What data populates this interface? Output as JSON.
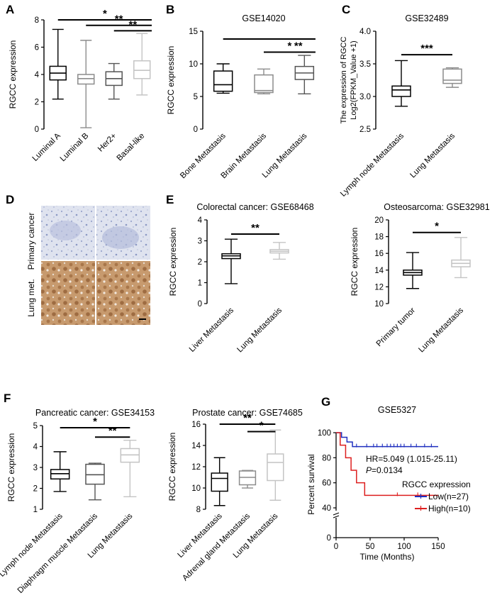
{
  "figure": {
    "panel_letters": [
      "A",
      "B",
      "C",
      "D",
      "E",
      "F",
      "G"
    ],
    "ihc": {
      "row_labels": [
        "Primary cancer",
        "Lung met."
      ]
    }
  },
  "chart_data": [
    {
      "id": "A",
      "type": "box",
      "title": "",
      "xlabel": "",
      "ylabel": "RGCC expression",
      "ylim": [
        0,
        8
      ],
      "yticks": [
        0,
        2,
        4,
        6,
        8
      ],
      "categories": [
        "Luminal A",
        "Luminal B",
        "Her2+",
        "Basal-like"
      ],
      "boxes": [
        {
          "min": 2.2,
          "q1": 3.6,
          "median": 4.1,
          "q3": 4.6,
          "max": 7.3,
          "color": "#000000"
        },
        {
          "min": 0.1,
          "q1": 3.3,
          "median": 3.7,
          "q3": 4.0,
          "max": 6.5,
          "color": "#8c8c8c"
        },
        {
          "min": 2.2,
          "q1": 3.2,
          "median": 3.7,
          "q3": 4.2,
          "max": 4.8,
          "color": "#555555"
        },
        {
          "min": 2.5,
          "q1": 3.7,
          "median": 4.3,
          "q3": 5.0,
          "max": 7.0,
          "color": "#c4c4c4"
        }
      ],
      "significance": [
        {
          "from": 0,
          "to": 3,
          "label": "*"
        },
        {
          "from": 1,
          "to": 3,
          "label": "**"
        },
        {
          "from": 2,
          "to": 3,
          "label": "**"
        }
      ]
    },
    {
      "id": "B",
      "type": "box",
      "title": "GSE14020",
      "xlabel": "",
      "ylabel": "RGCC expression",
      "ylim": [
        0,
        15
      ],
      "yticks": [
        0,
        5,
        10,
        15
      ],
      "categories": [
        "Bone Metastasis",
        "Brain Metastasis",
        "Lung Metastasis"
      ],
      "boxes": [
        {
          "min": 5.5,
          "q1": 5.8,
          "median": 6.8,
          "q3": 8.9,
          "max": 10.0,
          "color": "#000000"
        },
        {
          "min": 5.4,
          "q1": 5.6,
          "median": 5.9,
          "q3": 8.3,
          "max": 9.2,
          "color": "#8c8c8c"
        },
        {
          "min": 5.4,
          "q1": 7.6,
          "median": 8.6,
          "q3": 9.6,
          "max": 11.3,
          "color": "#555555"
        }
      ],
      "significance": [
        {
          "from": 0,
          "to": 2,
          "label": ""
        },
        {
          "from": 1,
          "to": 2,
          "label": "*"
        },
        {
          "from": 2,
          "to": 2,
          "label": "**"
        }
      ]
    },
    {
      "id": "C",
      "type": "box",
      "title": "GSE32489",
      "xlabel": "",
      "ylabel": "The expression of RGCC",
      "ylabel2": "Log2(FPKM_Value +1)",
      "ylim": [
        2.5,
        4.0
      ],
      "yticks": [
        2.5,
        3.0,
        3.5,
        4.0
      ],
      "categories": [
        "Lymph node Metastasis",
        "Lung Metastasis"
      ],
      "boxes": [
        {
          "min": 2.85,
          "q1": 3.0,
          "median": 3.1,
          "q3": 3.16,
          "max": 3.55,
          "color": "#000000"
        },
        {
          "min": 3.14,
          "q1": 3.2,
          "median": 3.25,
          "q3": 3.42,
          "max": 3.44,
          "color": "#8c8c8c"
        }
      ],
      "significance": [
        {
          "from": 0,
          "to": 1,
          "label": "***"
        }
      ]
    },
    {
      "id": "E1",
      "type": "box",
      "title": "Colorectal cancer: GSE68468",
      "xlabel": "",
      "ylabel": "RGCC expression",
      "ylim": [
        0,
        4
      ],
      "yticks": [
        0,
        1,
        2,
        3,
        4
      ],
      "categories": [
        "Liver Metastasis",
        "Lung Metastasis"
      ],
      "boxes": [
        {
          "min": 0.95,
          "q1": 2.15,
          "median": 2.28,
          "q3": 2.38,
          "max": 3.08,
          "color": "#000000"
        },
        {
          "min": 2.12,
          "q1": 2.42,
          "median": 2.5,
          "q3": 2.58,
          "max": 2.92,
          "color": "#c4c4c4"
        }
      ],
      "significance": [
        {
          "from": 0,
          "to": 1,
          "label": "**"
        }
      ]
    },
    {
      "id": "E2",
      "type": "box",
      "title": "Osteosarcoma: GSE32981",
      "xlabel": "",
      "ylabel": "RGCC expression",
      "ylim": [
        10,
        20
      ],
      "yticks": [
        10,
        12,
        14,
        16,
        18,
        20
      ],
      "categories": [
        "Primary tumor",
        "Lung Metastasis"
      ],
      "boxes": [
        {
          "min": 11.8,
          "q1": 13.4,
          "median": 13.7,
          "q3": 14.0,
          "max": 16.1,
          "color": "#000000"
        },
        {
          "min": 13.1,
          "q1": 14.4,
          "median": 14.8,
          "q3": 15.2,
          "max": 17.9,
          "color": "#c4c4c4"
        }
      ],
      "significance": [
        {
          "from": 0,
          "to": 1,
          "label": "*"
        }
      ]
    },
    {
      "id": "F1",
      "type": "box",
      "title": "Pancreatic cancer: GSE34153",
      "xlabel": "",
      "ylabel": "RGCC expression",
      "ylim": [
        1,
        5
      ],
      "yticks": [
        1,
        2,
        3,
        4,
        5
      ],
      "categories": [
        "Lymph node Metastasis",
        "Diaphragm muscle Metastasis",
        "Lung Metastasis"
      ],
      "boxes": [
        {
          "min": 1.85,
          "q1": 2.45,
          "median": 2.7,
          "q3": 2.9,
          "max": 3.75,
          "color": "#000000"
        },
        {
          "min": 1.45,
          "q1": 2.2,
          "median": 2.65,
          "q3": 3.15,
          "max": 3.2,
          "color": "#555555"
        },
        {
          "min": 1.6,
          "q1": 3.25,
          "median": 3.6,
          "q3": 3.9,
          "max": 4.3,
          "color": "#c4c4c4"
        }
      ],
      "significance": [
        {
          "from": 0,
          "to": 2,
          "label": "*"
        },
        {
          "from": 1,
          "to": 2,
          "label": "**"
        }
      ]
    },
    {
      "id": "F2",
      "type": "box",
      "title": "Prostate cancer: GSE74685",
      "xlabel": "",
      "ylabel": "RGCC expression",
      "ylim": [
        8,
        16
      ],
      "yticks": [
        8,
        10,
        12,
        14,
        16
      ],
      "categories": [
        "Liver Metastasis",
        "Adrenal gland Metastasis",
        "Lung Metastasis"
      ],
      "boxes": [
        {
          "min": 8.35,
          "q1": 9.7,
          "median": 10.9,
          "q3": 11.4,
          "max": 12.85,
          "color": "#000000"
        },
        {
          "min": 10.0,
          "q1": 10.3,
          "median": 11.0,
          "q3": 11.6,
          "max": 11.65,
          "color": "#8c8c8c"
        },
        {
          "min": 8.85,
          "q1": 10.7,
          "median": 12.4,
          "q3": 13.2,
          "max": 15.45,
          "color": "#c4c4c4"
        }
      ],
      "significance": [
        {
          "from": 0,
          "to": 2,
          "label": "**"
        },
        {
          "from": 1,
          "to": 2,
          "label": "*"
        }
      ]
    },
    {
      "id": "G",
      "type": "line",
      "subtype": "kaplan-meier",
      "title": "GSE5327",
      "xlabel": "Time (Months)",
      "ylabel": "Percent survival",
      "xlim": [
        0,
        150
      ],
      "xticks": [
        0,
        50,
        100,
        150
      ],
      "ylim": [
        0,
        100
      ],
      "yticks": [
        0,
        40,
        60,
        80,
        100
      ],
      "y_axis_break": true,
      "hr_text": "HR=5.049 (1.015-25.11)",
      "p_label": "P",
      "p_value": "=0.0134",
      "legend_title": "RGCC expression",
      "legend_placement": "bottom-right",
      "series": [
        {
          "name": "Low(n=27)",
          "color": "#1f2fbf",
          "steps": [
            [
              0,
              100
            ],
            [
              8,
              96.3
            ],
            [
              16,
              92.6
            ],
            [
              24,
              88.9
            ],
            [
              150,
              88.9
            ]
          ],
          "censors": [
            30,
            45,
            55,
            60,
            68,
            75,
            80,
            85,
            90,
            95,
            100,
            110,
            118,
            130,
            140
          ]
        },
        {
          "name": "High(n=10)",
          "color": "#dd1f1f",
          "steps": [
            [
              0,
              100
            ],
            [
              6,
              90
            ],
            [
              14,
              80
            ],
            [
              22,
              70
            ],
            [
              30,
              60
            ],
            [
              42,
              50
            ],
            [
              150,
              50
            ]
          ],
          "censors": [
            90,
            120
          ]
        }
      ]
    }
  ]
}
